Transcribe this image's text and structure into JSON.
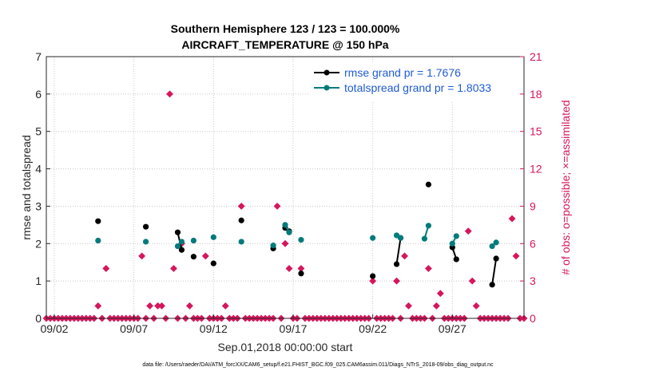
{
  "chart_data": {
    "type": "scatter",
    "title_line1": "Southern Hemisphere 123 / 123 = 100.000%",
    "title_line2": "AIRCRAFT_TEMPERATURE @ 150 hPa",
    "xlabel": "Sep.01,2018 00:00:00 start",
    "ylabel_left": "rmse and totalspread",
    "ylabel_right": "# of obs: o=possible; ×=assimilated",
    "footnote": "data file: /Users/raeder/DAI/ATM_forcXX/CAM6_setup/f.e21.FHIST_BGC.f09_025.CAM6assim.011/Diags_NTrS_2018-09/obs_diag_output.nc",
    "xlim": [
      1.5,
      31.5
    ],
    "ylim_left": [
      0,
      7
    ],
    "ylim_right": [
      0,
      21
    ],
    "x_ticks": [
      2,
      7,
      12,
      17,
      22,
      27
    ],
    "x_tick_labels": [
      "09/02",
      "09/07",
      "09/12",
      "09/17",
      "09/22",
      "09/27"
    ],
    "y_left_ticks": [
      "0",
      "1",
      "2",
      "3",
      "4",
      "5",
      "6",
      "7"
    ],
    "y_right_ticks": [
      "0",
      "3",
      "6",
      "9",
      "12",
      "15",
      "18",
      "21"
    ],
    "grid": true,
    "legend_position": "top-right",
    "colors": {
      "rmse": "#000000",
      "spread": "#007b7b",
      "obs": "#d6165c",
      "legend_text": "#1f5bd6"
    },
    "series": [
      {
        "name": "rmse grand pr = 1.7676",
        "color": "#000000",
        "points": [
          [
            4.75,
            2.6
          ],
          [
            7.75,
            2.45
          ],
          [
            9.75,
            2.3
          ],
          [
            10.0,
            1.83
          ],
          [
            10.75,
            1.65
          ],
          [
            12.0,
            1.47
          ],
          [
            13.75,
            2.62
          ],
          [
            15.75,
            1.87
          ],
          [
            16.5,
            2.42
          ],
          [
            16.75,
            2.33
          ],
          [
            17.5,
            1.2
          ],
          [
            22.0,
            1.13
          ],
          [
            23.5,
            1.45
          ],
          [
            23.75,
            2.15
          ],
          [
            25.5,
            3.58
          ],
          [
            27.0,
            1.9
          ],
          [
            27.25,
            1.58
          ],
          [
            29.5,
            0.9
          ],
          [
            29.75,
            1.6
          ]
        ]
      },
      {
        "name": "totalspread grand pr = 1.8033",
        "color": "#007b7b",
        "points": [
          [
            4.75,
            2.08
          ],
          [
            7.75,
            2.05
          ],
          [
            9.75,
            1.93
          ],
          [
            10.0,
            2.05
          ],
          [
            10.75,
            2.08
          ],
          [
            12.0,
            2.17
          ],
          [
            13.75,
            2.05
          ],
          [
            15.75,
            1.95
          ],
          [
            16.5,
            2.5
          ],
          [
            16.75,
            2.3
          ],
          [
            17.5,
            2.1
          ],
          [
            22.0,
            2.15
          ],
          [
            23.5,
            2.22
          ],
          [
            23.75,
            2.15
          ],
          [
            25.25,
            2.13
          ],
          [
            25.5,
            2.48
          ],
          [
            27.0,
            2.0
          ],
          [
            27.25,
            2.2
          ],
          [
            29.5,
            1.93
          ],
          [
            29.75,
            2.03
          ]
        ]
      }
    ],
    "obs_counts": {
      "x_start": 1.5,
      "step": 0.25,
      "values": [
        0,
        0,
        0,
        0,
        0,
        0,
        0,
        0,
        0,
        0,
        0,
        0,
        0,
        1,
        0,
        4,
        0,
        0,
        0,
        0,
        0,
        0,
        0,
        0,
        5,
        0,
        1,
        0,
        1,
        1,
        0,
        18,
        4,
        0,
        6,
        0,
        1,
        0,
        0,
        0,
        5,
        0,
        0,
        0,
        0,
        1,
        0,
        0,
        0,
        9,
        0,
        0,
        0,
        0,
        0,
        0,
        0,
        0,
        9,
        0,
        6,
        4,
        0,
        0,
        4,
        0,
        0,
        0,
        0,
        0,
        0,
        0,
        0,
        0,
        0,
        0,
        0,
        0,
        0,
        0,
        0,
        0,
        3,
        0,
        0,
        0,
        0,
        0,
        3,
        0,
        5,
        1,
        0,
        0,
        0,
        0,
        4,
        0,
        1,
        2,
        0,
        0,
        0,
        0,
        0,
        0,
        7,
        3,
        1,
        0,
        0,
        0,
        0,
        0,
        0,
        0,
        0,
        8,
        5,
        0,
        0
      ]
    }
  }
}
